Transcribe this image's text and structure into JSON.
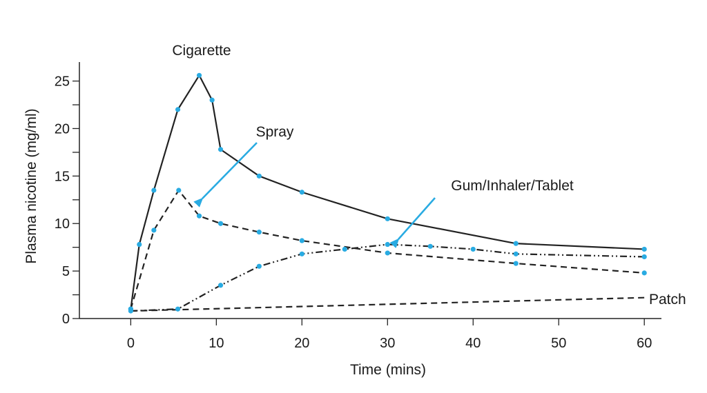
{
  "chart_data": {
    "type": "line",
    "title": "",
    "xlabel": "Time (mins)",
    "ylabel": "Plasma nicotine (mg/ml)",
    "xlim": [
      -6,
      62
    ],
    "ylim": [
      0,
      27
    ],
    "xticks": [
      0,
      10,
      20,
      30,
      40,
      50,
      60
    ],
    "yticks": [
      0,
      5,
      10,
      15,
      20,
      25
    ],
    "grid": false,
    "legend": "none",
    "marker_color": "#29abe2",
    "line_color": "#222222",
    "arrow_color": "#29abe2",
    "series": [
      {
        "name": "Cigarette",
        "style": "solid",
        "x": [
          0,
          1,
          2.7,
          5.5,
          8,
          9.5,
          10.5,
          15,
          20,
          30,
          45,
          60
        ],
        "y": [
          1,
          7.8,
          13.5,
          22,
          25.6,
          23,
          17.8,
          15,
          13.3,
          10.5,
          7.9,
          7.3
        ]
      },
      {
        "name": "Spray",
        "style": "dashed",
        "x": [
          0,
          2.7,
          5.6,
          8,
          10.5,
          15,
          20,
          30,
          45,
          60
        ],
        "y": [
          1,
          9.3,
          13.5,
          10.8,
          10,
          9.1,
          8.2,
          6.9,
          5.8,
          4.8
        ]
      },
      {
        "name": "Gum/Inhaler/Tablet",
        "style": "dashdot",
        "x": [
          0,
          5.5,
          10.5,
          15,
          20,
          25,
          30,
          35,
          40,
          45,
          60
        ],
        "y": [
          0.8,
          1,
          3.5,
          5.5,
          6.8,
          7.3,
          7.8,
          7.6,
          7.3,
          6.8,
          6.5
        ]
      },
      {
        "name": "Patch",
        "style": "dashed",
        "x": [
          0,
          60
        ],
        "y": [
          0.8,
          2.2
        ]
      }
    ],
    "annotations": [
      {
        "text": "Cigarette",
        "series": 0
      },
      {
        "text": "Spray",
        "series": 1,
        "arrow": true
      },
      {
        "text": "Gum/Inhaler/Tablet",
        "series": 2,
        "arrow": true
      },
      {
        "text": "Patch",
        "series": 3
      }
    ]
  }
}
